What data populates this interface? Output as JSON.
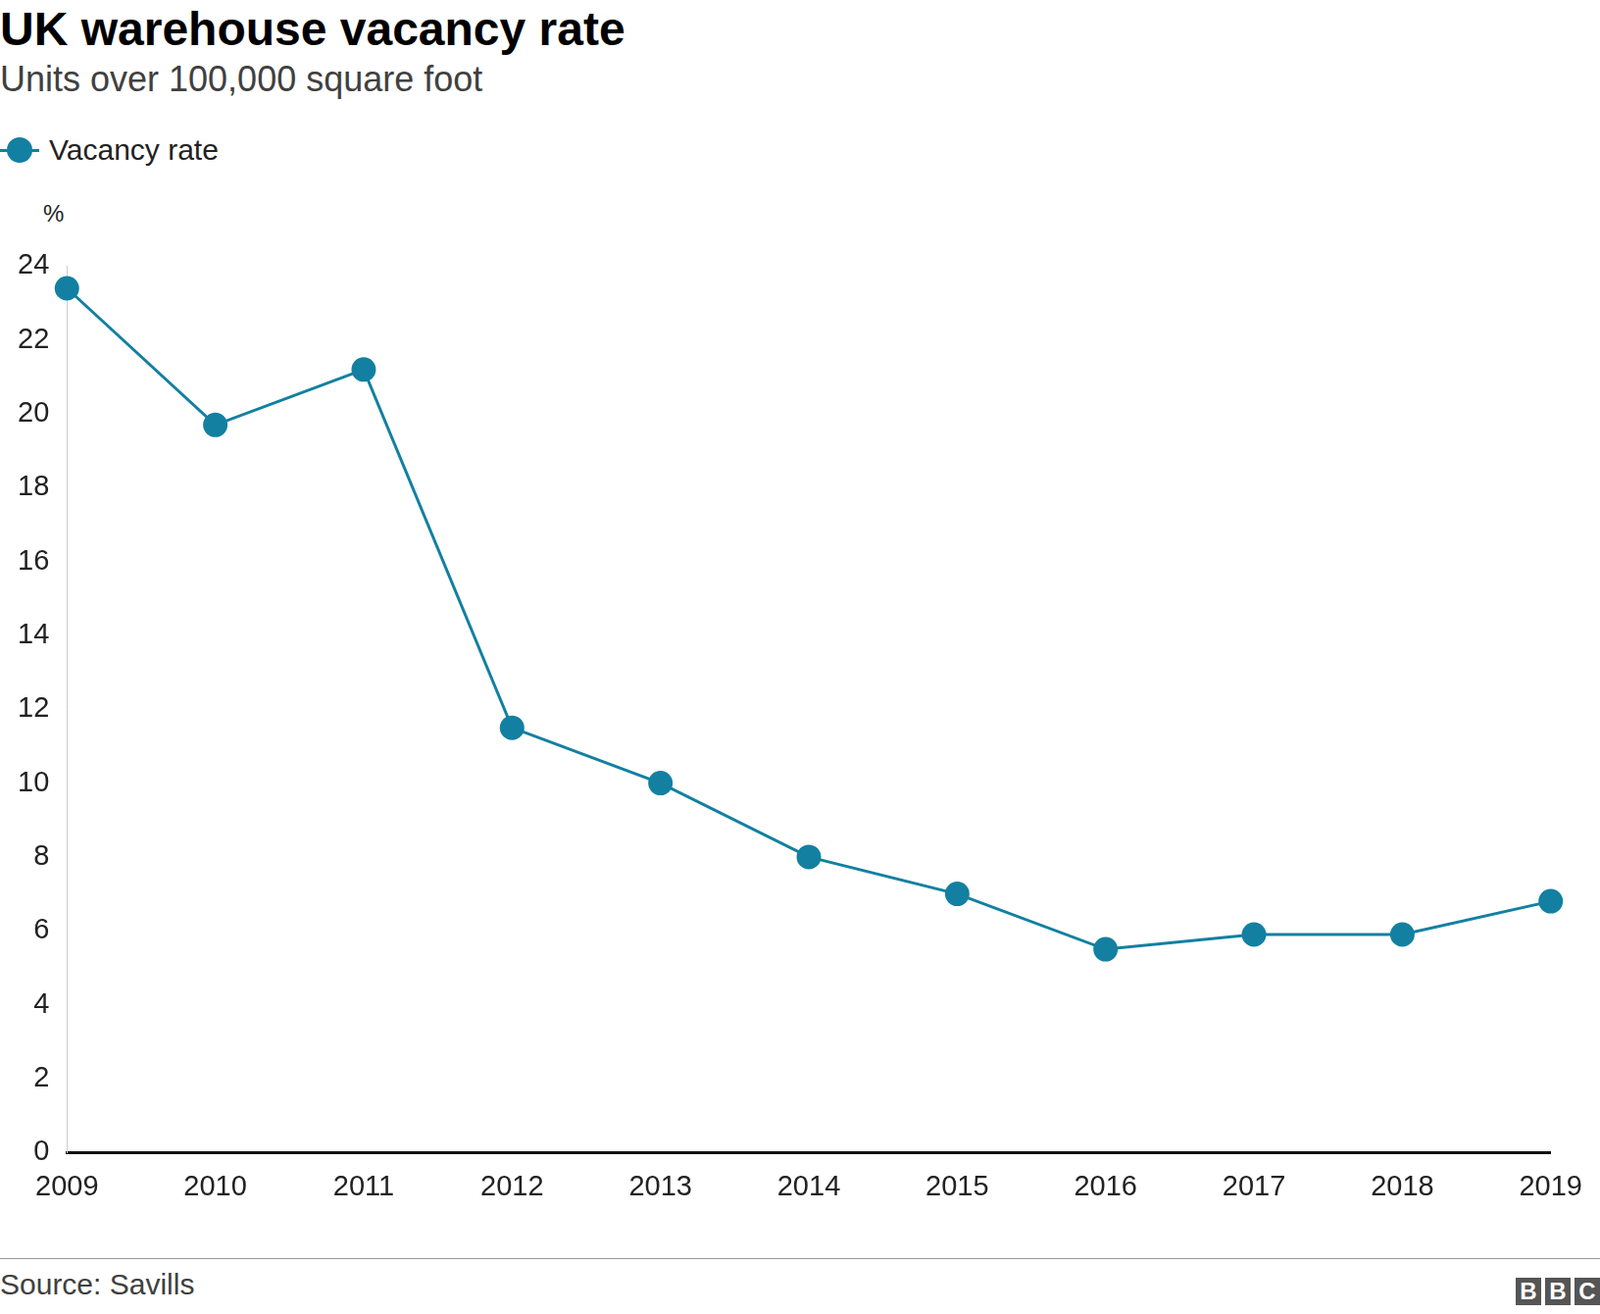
{
  "chart_data": {
    "type": "line",
    "title": "UK warehouse vacancy rate",
    "subtitle": "Units over 100,000 square foot",
    "ylabel": "%",
    "source": "Source: Savills",
    "logo": "BBC",
    "categories": [
      "2009",
      "2010",
      "2011",
      "2012",
      "2013",
      "2014",
      "2015",
      "2016",
      "2017",
      "2018",
      "2019"
    ],
    "series": [
      {
        "name": "Vacancy rate",
        "color": "#1380a1",
        "values": [
          23.4,
          19.7,
          21.2,
          11.5,
          10.0,
          8.0,
          7.0,
          5.5,
          5.9,
          5.9,
          6.8
        ]
      }
    ],
    "marker": "circle",
    "line_style": "solid",
    "ylim": [
      0,
      24
    ],
    "yticks": [
      0,
      2,
      4,
      6,
      8,
      10,
      12,
      14,
      16,
      18,
      20,
      22,
      24
    ],
    "grid": false,
    "legend": "top-left"
  }
}
